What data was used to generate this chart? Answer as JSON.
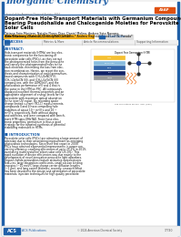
{
  "journal_title": "Inorganic Chemistry",
  "journal_title_color": "#2060a8",
  "bg_color": "#ffffff",
  "header_line_color": "#2060a8",
  "title_color": "#000000",
  "author_color": "#000000",
  "cite_bg_color": "#f0b020",
  "cite_text_color": "#000000",
  "access_bg_color": "#f5f5f5",
  "access_text_color": "#2060a8",
  "abstract_label_color": "#2060a8",
  "body_text_color": "#111111",
  "intro_label_color": "#2060a8",
  "acs_blue": "#2060a8",
  "footer_bg": "#e8e8e8",
  "asap_bg": "#e05010",
  "read_btn_bg": "#e8e8e8",
  "figure_bg": "#f8f8f8",
  "side_stripe_color": "#2060a8",
  "layer_colors": [
    "#f5c040",
    "#88bbdd",
    "#4477bb",
    "#223388",
    "#888888"
  ],
  "page_bg": "#f0f0f0"
}
